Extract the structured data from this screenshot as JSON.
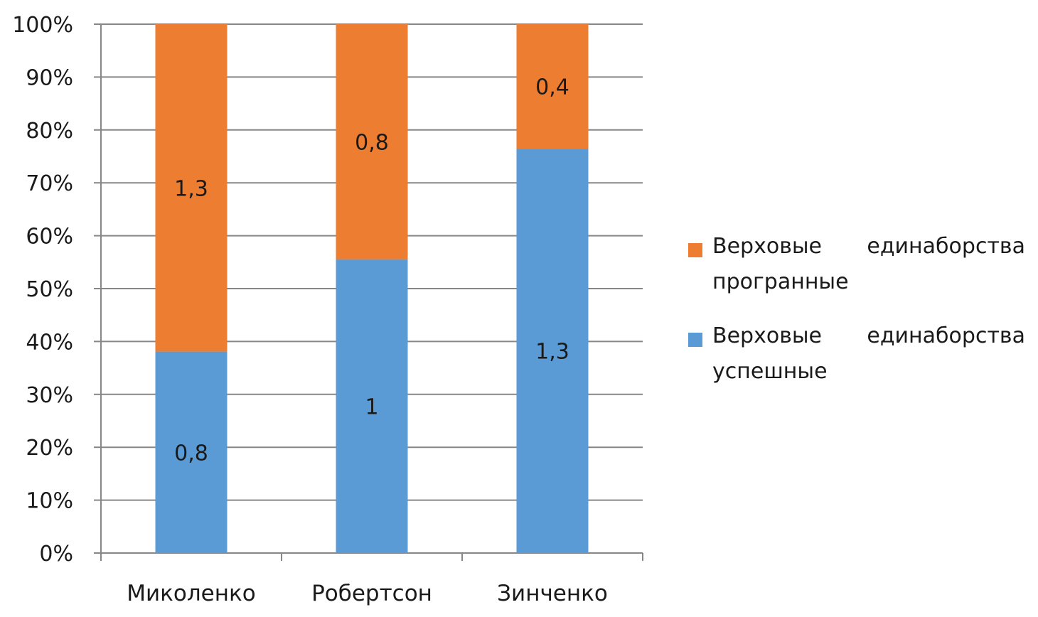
{
  "chart_data": {
    "type": "bar",
    "stacked": "percent",
    "categories": [
      "Миколенко",
      "Робертсон",
      "Зинченко"
    ],
    "series": [
      {
        "name": "Верховые единаборства успешные",
        "values": [
          0.8,
          1,
          1.3
        ],
        "labels": [
          "0,8",
          "1",
          "1,3"
        ],
        "color": "#5b9bd5"
      },
      {
        "name": "Верховые единаборства програнные",
        "values": [
          1.3,
          0.8,
          0.4
        ],
        "labels": [
          "1,3",
          "0,8",
          "0,4"
        ],
        "color": "#ed7d31"
      }
    ],
    "y_ticks": [
      "0%",
      "10%",
      "20%",
      "30%",
      "40%",
      "50%",
      "60%",
      "70%",
      "80%",
      "90%",
      "100%"
    ],
    "ylim": [
      0,
      100
    ],
    "grid": true,
    "legend_position": "right",
    "legend_order": [
      1,
      0
    ]
  }
}
